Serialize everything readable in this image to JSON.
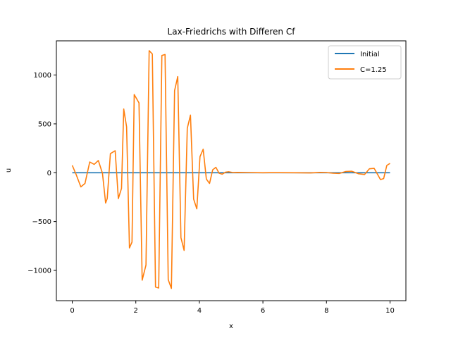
{
  "chart_data": {
    "type": "line",
    "title": "Lax-Friedrichs with Differen Cf",
    "xlabel": "x",
    "ylabel": "u",
    "xlim": [
      -0.5,
      10.5
    ],
    "ylim": [
      -1310,
      1350
    ],
    "xticks": [
      0,
      2,
      4,
      6,
      8,
      10
    ],
    "xtick_labels": [
      "0",
      "2",
      "4",
      "6",
      "8",
      "10"
    ],
    "yticks": [
      -1000,
      -500,
      0,
      500,
      1000
    ],
    "ytick_labels": [
      "−1000",
      "−500",
      "0",
      "500",
      "1000"
    ],
    "grid": false,
    "legend_position": "top-right",
    "series": [
      {
        "name": "Initial",
        "color": "#1f77b4",
        "x": [
          0,
          10
        ],
        "y": [
          0,
          0
        ]
      },
      {
        "name": "C=1.25",
        "color": "#ff7f0e",
        "x": [
          0,
          0.13,
          0.27,
          0.4,
          0.55,
          0.69,
          0.82,
          0.95,
          1.05,
          1.1,
          1.2,
          1.35,
          1.45,
          1.55,
          1.62,
          1.71,
          1.8,
          1.88,
          1.95,
          2.1,
          2.2,
          2.32,
          2.42,
          2.52,
          2.62,
          2.72,
          2.82,
          2.92,
          3.02,
          3.12,
          3.22,
          3.32,
          3.42,
          3.52,
          3.62,
          3.72,
          3.82,
          3.92,
          4.02,
          4.12,
          4.22,
          4.32,
          4.42,
          4.52,
          4.62,
          4.72,
          4.82,
          4.92,
          5.05,
          5.2,
          5.5,
          6.0,
          6.5,
          7.0,
          7.5,
          7.8,
          8.0,
          8.2,
          8.4,
          8.6,
          8.8,
          9.0,
          9.2,
          9.35,
          9.5,
          9.7,
          9.8,
          9.9,
          10.0
        ],
        "y": [
          75,
          -25,
          -145,
          -110,
          110,
          85,
          125,
          -5,
          -310,
          -265,
          195,
          225,
          -265,
          -160,
          652,
          470,
          -770,
          -710,
          800,
          715,
          -1100,
          -945,
          1250,
          1215,
          -1170,
          -1180,
          1200,
          1210,
          -1095,
          -1185,
          840,
          985,
          -665,
          -795,
          455,
          590,
          -270,
          -370,
          165,
          240,
          -65,
          -110,
          30,
          55,
          -5,
          -15,
          5,
          10,
          2,
          3,
          2,
          0,
          1,
          0,
          -2,
          3,
          2,
          -5,
          -8,
          12,
          15,
          -10,
          -18,
          40,
          45,
          -70,
          -60,
          75,
          95
        ]
      }
    ]
  }
}
